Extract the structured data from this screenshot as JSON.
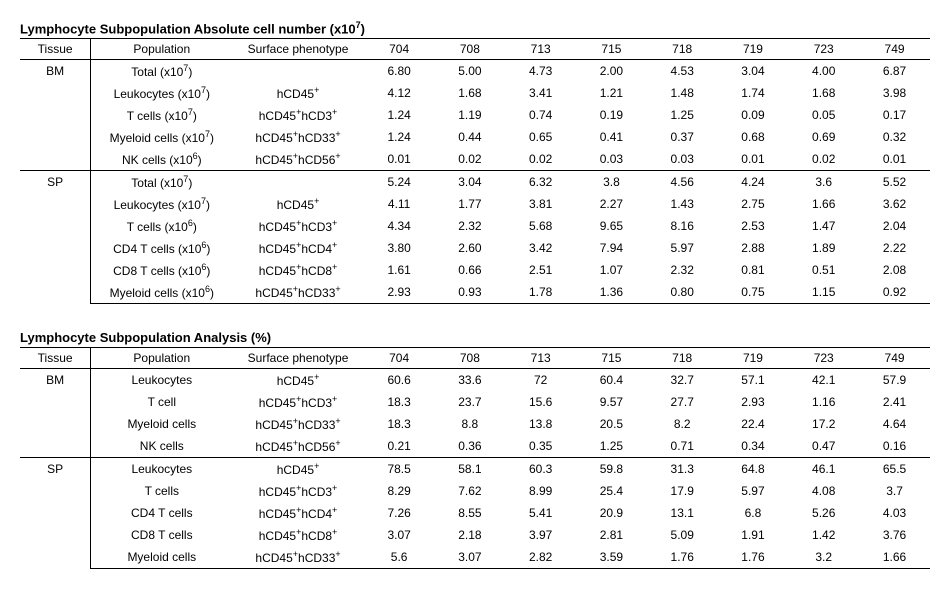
{
  "tables": [
    {
      "title_html": "Lymphocyte Subpopulation Absolute cell number (x10<sup>7</sup>)",
      "columns": [
        "Tissue",
        "Population",
        "Surface phenotype",
        "704",
        "708",
        "713",
        "715",
        "718",
        "719",
        "723",
        "749"
      ],
      "groups": [
        {
          "tissue": "BM",
          "rows": [
            {
              "pop_html": "Total (x10<sup>7</sup>)",
              "pheno_html": "",
              "v": [
                "6.80",
                "5.00",
                "4.73",
                "2.00",
                "4.53",
                "3.04",
                "4.00",
                "6.87"
              ]
            },
            {
              "pop_html": "Leukocytes (x10<sup>7</sup>)",
              "pheno_html": "hCD45<sup>+</sup>",
              "v": [
                "4.12",
                "1.68",
                "3.41",
                "1.21",
                "1.48",
                "1.74",
                "1.68",
                "3.98"
              ]
            },
            {
              "pop_html": "T cells (x10<sup>7</sup>)",
              "pheno_html": "hCD45<sup>+</sup>hCD3<sup>+</sup>",
              "v": [
                "1.24",
                "1.19",
                "0.74",
                "0.19",
                "1.25",
                "0.09",
                "0.05",
                "0.17"
              ]
            },
            {
              "pop_html": "Myeloid cells (x10<sup>7</sup>)",
              "pheno_html": "hCD45<sup>+</sup>hCD33<sup>+</sup>",
              "v": [
                "1.24",
                "0.44",
                "0.65",
                "0.41",
                "0.37",
                "0.68",
                "0.69",
                "0.32"
              ]
            },
            {
              "pop_html": "NK cells (x10<sup>6</sup>)",
              "pheno_html": "hCD45<sup>+</sup>hCD56<sup>+</sup>",
              "v": [
                "0.01",
                "0.02",
                "0.02",
                "0.03",
                "0.03",
                "0.01",
                "0.02",
                "0.01"
              ]
            }
          ]
        },
        {
          "tissue": "SP",
          "rows": [
            {
              "pop_html": "Total (x10<sup>7</sup>)",
              "pheno_html": "",
              "v": [
                "5.24",
                "3.04",
                "6.32",
                "3.8",
                "4.56",
                "4.24",
                "3.6",
                "5.52"
              ]
            },
            {
              "pop_html": "Leukocytes (x10<sup>7</sup>)",
              "pheno_html": "hCD45<sup>+</sup>",
              "v": [
                "4.11",
                "1.77",
                "3.81",
                "2.27",
                "1.43",
                "2.75",
                "1.66",
                "3.62"
              ]
            },
            {
              "pop_html": "T cells (x10<sup>6</sup>)",
              "pheno_html": "hCD45<sup>+</sup>hCD3<sup>+</sup>",
              "v": [
                "4.34",
                "2.32",
                "5.68",
                "9.65",
                "8.16",
                "2.53",
                "1.47",
                "2.04"
              ]
            },
            {
              "pop_html": "CD4 T cells (x10<sup>6</sup>)",
              "pheno_html": "hCD45<sup>+</sup>hCD4<sup>+</sup>",
              "v": [
                "3.80",
                "2.60",
                "3.42",
                "7.94",
                "5.97",
                "2.88",
                "1.89",
                "2.22"
              ]
            },
            {
              "pop_html": "CD8 T cells (x10<sup>6</sup>)",
              "pheno_html": "hCD45<sup>+</sup>hCD8<sup>+</sup>",
              "v": [
                "1.61",
                "0.66",
                "2.51",
                "1.07",
                "2.32",
                "0.81",
                "0.51",
                "2.08"
              ]
            },
            {
              "pop_html": "Myeloid cells (x10<sup>6</sup>)",
              "pheno_html": "hCD45<sup>+</sup>hCD33<sup>+</sup>",
              "v": [
                "2.93",
                "0.93",
                "1.78",
                "1.36",
                "0.80",
                "0.75",
                "1.15",
                "0.92"
              ]
            }
          ]
        }
      ]
    },
    {
      "title_html": "Lymphocyte Subpopulation Analysis (%)",
      "columns": [
        "Tissue",
        "Population",
        "Surface phenotype",
        "704",
        "708",
        "713",
        "715",
        "718",
        "719",
        "723",
        "749"
      ],
      "groups": [
        {
          "tissue": "BM",
          "rows": [
            {
              "pop_html": "Leukocytes",
              "pheno_html": "hCD45<sup>+</sup>",
              "v": [
                "60.6",
                "33.6",
                "72",
                "60.4",
                "32.7",
                "57.1",
                "42.1",
                "57.9"
              ]
            },
            {
              "pop_html": "T cell",
              "pheno_html": "hCD45<sup>+</sup>hCD3<sup>+</sup>",
              "v": [
                "18.3",
                "23.7",
                "15.6",
                "9.57",
                "27.7",
                "2.93",
                "1.16",
                "2.41"
              ]
            },
            {
              "pop_html": "Myeloid cells",
              "pheno_html": "hCD45<sup>+</sup>hCD33<sup>+</sup>",
              "v": [
                "18.3",
                "8.8",
                "13.8",
                "20.5",
                "8.2",
                "22.4",
                "17.2",
                "4.64"
              ]
            },
            {
              "pop_html": "NK cells",
              "pheno_html": "hCD45<sup>+</sup>hCD56<sup>+</sup>",
              "v": [
                "0.21",
                "0.36",
                "0.35",
                "1.25",
                "0.71",
                "0.34",
                "0.47",
                "0.16"
              ]
            }
          ]
        },
        {
          "tissue": "SP",
          "rows": [
            {
              "pop_html": "Leukocytes",
              "pheno_html": "hCD45<sup>+</sup>",
              "v": [
                "78.5",
                "58.1",
                "60.3",
                "59.8",
                "31.3",
                "64.8",
                "46.1",
                "65.5"
              ]
            },
            {
              "pop_html": "T cells",
              "pheno_html": "hCD45<sup>+</sup>hCD3<sup>+</sup>",
              "v": [
                "8.29",
                "7.62",
                "8.99",
                "25.4",
                "17.9",
                "5.97",
                "4.08",
                "3.7"
              ]
            },
            {
              "pop_html": "CD4 T cells",
              "pheno_html": "hCD45<sup>+</sup>hCD4<sup>+</sup>",
              "v": [
                "7.26",
                "8.55",
                "5.41",
                "20.9",
                "13.1",
                "6.8",
                "5.26",
                "4.03"
              ]
            },
            {
              "pop_html": "CD8 T cells",
              "pheno_html": "hCD45<sup>+</sup>hCD8<sup>+</sup>",
              "v": [
                "3.07",
                "2.18",
                "3.97",
                "2.81",
                "5.09",
                "1.91",
                "1.42",
                "3.76"
              ]
            },
            {
              "pop_html": "Myeloid cells",
              "pheno_html": "hCD45<sup>+</sup>hCD33<sup>+</sup>",
              "v": [
                "5.6",
                "3.07",
                "2.82",
                "3.59",
                "1.76",
                "1.76",
                "3.2",
                "1.66"
              ]
            }
          ]
        }
      ]
    }
  ]
}
